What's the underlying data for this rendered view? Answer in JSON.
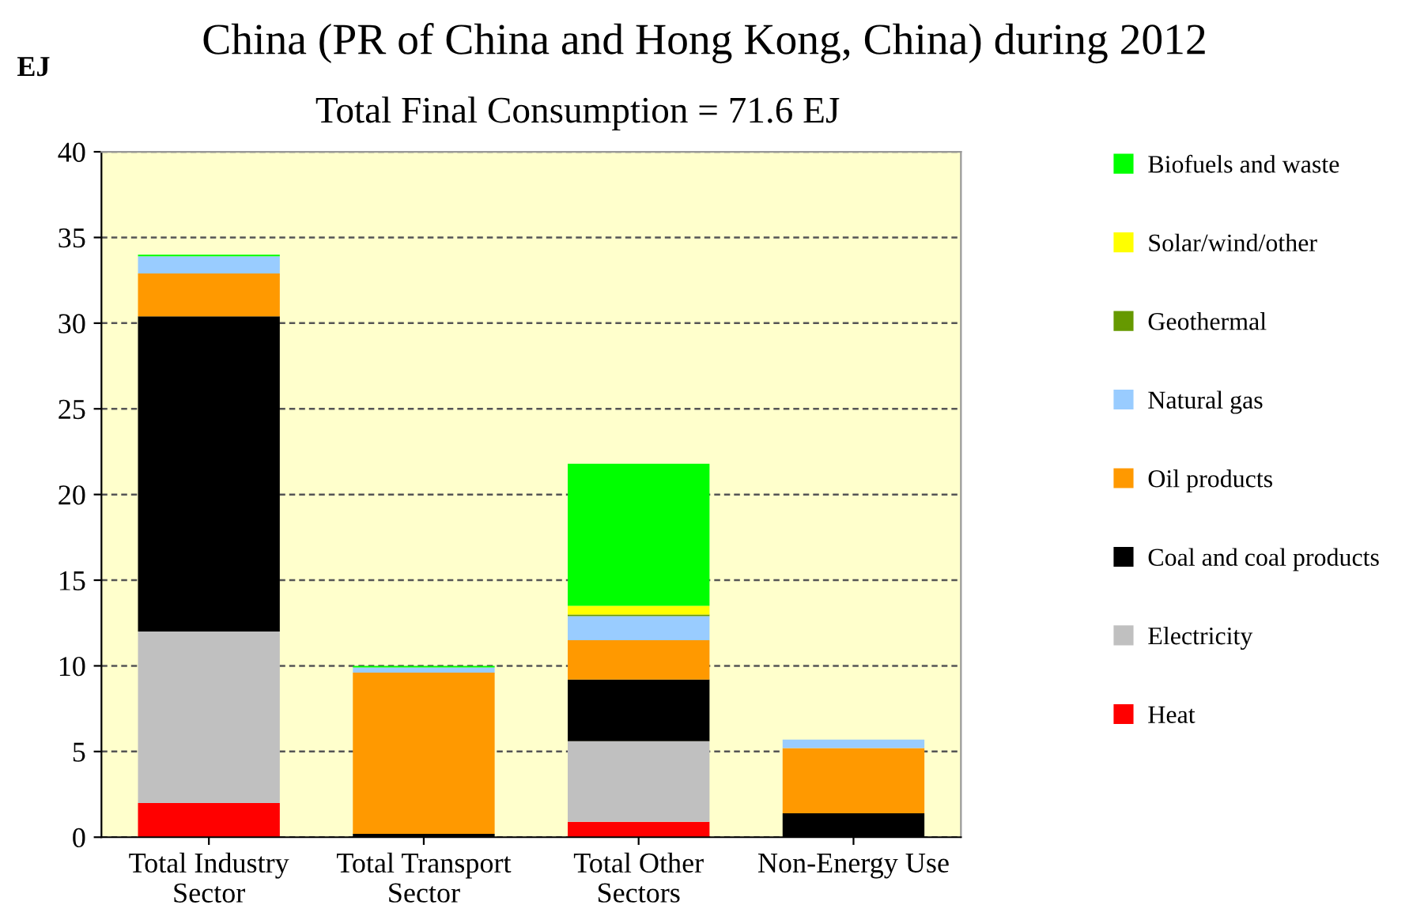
{
  "chart_data": {
    "type": "bar",
    "title": "China (PR of China and Hong Kong, China) during 2012",
    "subtitle": "Total Final Consumption = 71.6 EJ",
    "ylabel": "EJ",
    "categories": [
      "Total Industry\nSector",
      "Total Transport\nSector",
      "Total Other\nSectors",
      "Non-Energy Use"
    ],
    "stacked": true,
    "ylim": [
      0,
      40
    ],
    "yticks": [
      0,
      5,
      10,
      15,
      20,
      25,
      30,
      35,
      40
    ],
    "grid": "y",
    "legend": "right",
    "series": [
      {
        "name": "Heat",
        "color": "#ff0000",
        "values": [
          2.0,
          0,
          0.9,
          0
        ]
      },
      {
        "name": "Electricity",
        "color": "#c0c0c0",
        "values": [
          10.0,
          0,
          4.7,
          0
        ]
      },
      {
        "name": "Coal and coal products",
        "color": "#000000",
        "values": [
          18.4,
          0.2,
          3.6,
          1.4
        ]
      },
      {
        "name": "Oil products",
        "color": "#ff9900",
        "values": [
          2.5,
          9.4,
          2.3,
          3.8
        ]
      },
      {
        "name": "Natural gas",
        "color": "#99ccff",
        "values": [
          1.0,
          0.3,
          1.4,
          0.5
        ]
      },
      {
        "name": "Geothermal",
        "color": "#669900",
        "values": [
          0,
          0,
          0.1,
          0
        ]
      },
      {
        "name": "Solar/wind/other",
        "color": "#ffff00",
        "values": [
          0,
          0,
          0.5,
          0
        ]
      },
      {
        "name": "Biofuels and waste",
        "color": "#00ff00",
        "values": [
          0.1,
          0.1,
          8.3,
          0
        ]
      }
    ]
  }
}
